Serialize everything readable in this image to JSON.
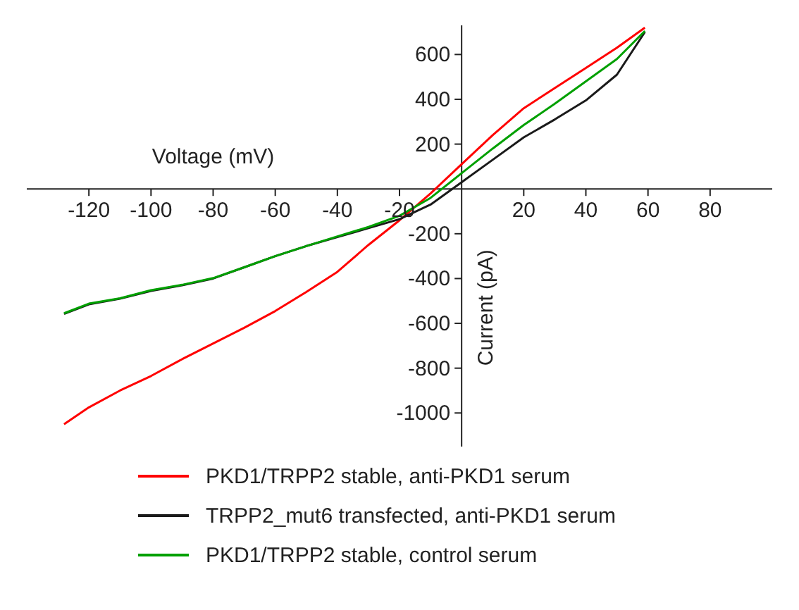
{
  "chart_data": {
    "type": "line",
    "xlabel": "Voltage (mV)",
    "ylabel": "Current (pA)",
    "xlim": [
      -140,
      100
    ],
    "xticks": [
      -120,
      -100,
      -80,
      -60,
      -40,
      -20,
      20,
      40,
      60,
      80
    ],
    "ylim": [
      -1150,
      730
    ],
    "yticks": [
      -1000,
      -800,
      -600,
      -400,
      -200,
      200,
      400,
      600
    ],
    "legend": "bottom",
    "marker": "none",
    "line_style": "solid",
    "series": [
      {
        "name": "PKD1/TRPP2 stable, anti-PKD1 serum",
        "color": "#ff0000",
        "x": [
          -128,
          -120,
          -110,
          -100,
          -90,
          -80,
          -70,
          -60,
          -50,
          -40,
          -30,
          -20,
          -10,
          0,
          10,
          20,
          30,
          40,
          50,
          59
        ],
        "values": [
          -1050,
          -975,
          -900,
          -835,
          -760,
          -690,
          -620,
          -545,
          -460,
          -370,
          -250,
          -140,
          -20,
          110,
          240,
          360,
          450,
          540,
          630,
          720
        ]
      },
      {
        "name": "TRPP2_mut6 transfected, anti-PKD1 serum",
        "color": "#1a1a1a",
        "x": [
          -128,
          -120,
          -110,
          -100,
          -90,
          -80,
          -70,
          -60,
          -50,
          -40,
          -30,
          -20,
          -10,
          0,
          10,
          20,
          30,
          40,
          50,
          59
        ],
        "values": [
          -558,
          -515,
          -490,
          -455,
          -430,
          -400,
          -350,
          -300,
          -255,
          -215,
          -175,
          -135,
          -70,
          30,
          130,
          230,
          310,
          395,
          510,
          700
        ]
      },
      {
        "name": "PKD1/TRPP2 stable, control serum",
        "color": "#00a000",
        "x": [
          -128,
          -120,
          -110,
          -100,
          -90,
          -80,
          -70,
          -60,
          -50,
          -40,
          -30,
          -20,
          -10,
          0,
          10,
          20,
          30,
          40,
          50,
          59
        ],
        "values": [
          -555,
          -512,
          -488,
          -452,
          -428,
          -398,
          -350,
          -300,
          -255,
          -212,
          -170,
          -120,
          -40,
          70,
          180,
          285,
          380,
          480,
          580,
          705
        ]
      }
    ]
  }
}
